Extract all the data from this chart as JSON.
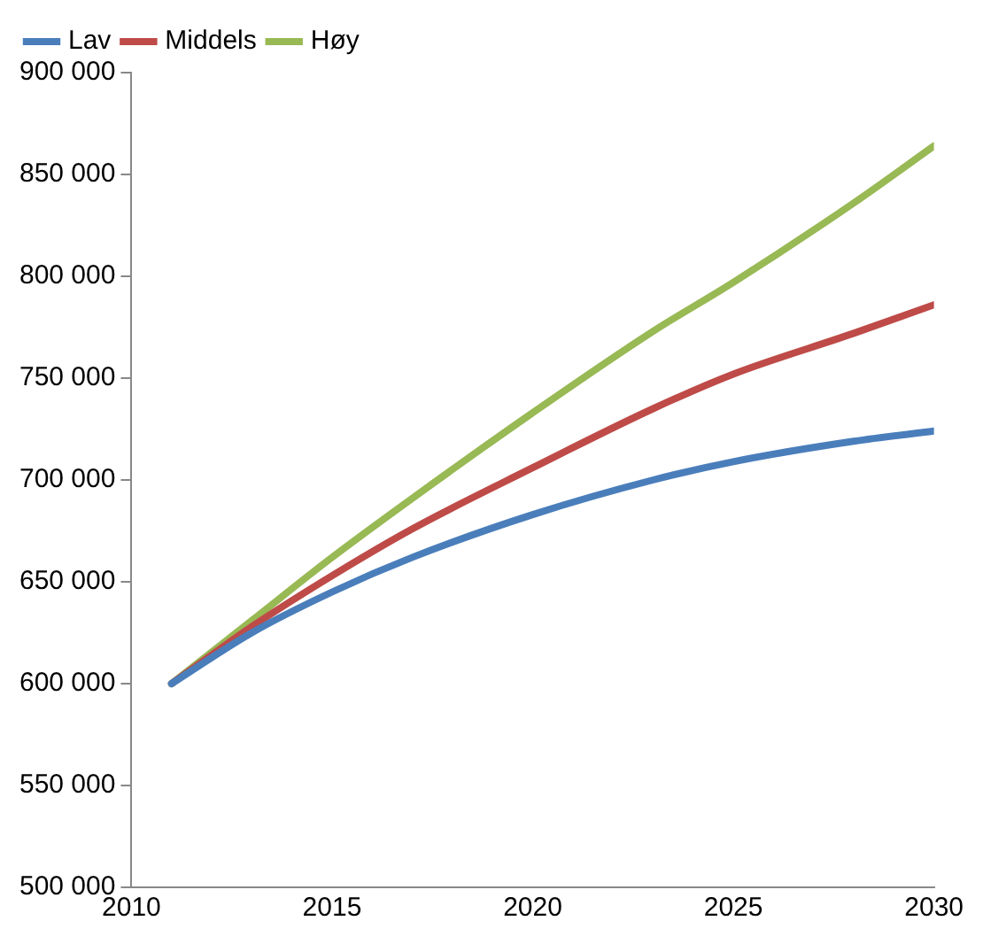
{
  "chart_data": {
    "type": "line",
    "x": [
      2011,
      2013,
      2015,
      2017,
      2020,
      2023,
      2025,
      2028,
      2030
    ],
    "series": [
      {
        "name": "Lav",
        "color": "#4a7ebb",
        "values": [
          600000,
          625000,
          645000,
          662000,
          683000,
          700000,
          709000,
          719000,
          724000
        ]
      },
      {
        "name": "Middels",
        "color": "#be4b48",
        "values": [
          600000,
          628000,
          653000,
          676000,
          706000,
          735000,
          752000,
          772000,
          786000
        ]
      },
      {
        "name": "Høy",
        "color": "#98b954",
        "values": [
          600000,
          631000,
          662000,
          691000,
          733000,
          773000,
          797000,
          836000,
          864000
        ]
      }
    ],
    "xlim": [
      2010,
      2030
    ],
    "xticks": [
      2010,
      2015,
      2020,
      2025,
      2030
    ],
    "ylim": [
      500000,
      900000
    ],
    "yticks": [
      {
        "value": 500000,
        "label": "500 000"
      },
      {
        "value": 550000,
        "label": "550 000"
      },
      {
        "value": 600000,
        "label": "600 000"
      },
      {
        "value": 650000,
        "label": "650 000"
      },
      {
        "value": 700000,
        "label": "700 000"
      },
      {
        "value": 750000,
        "label": "750 000"
      },
      {
        "value": 800000,
        "label": "800 000"
      },
      {
        "value": 850000,
        "label": "850 000"
      },
      {
        "value": 900000,
        "label": "900 000"
      }
    ],
    "grid": false,
    "legend": "top left",
    "marker": "none",
    "line_style": "solid"
  }
}
